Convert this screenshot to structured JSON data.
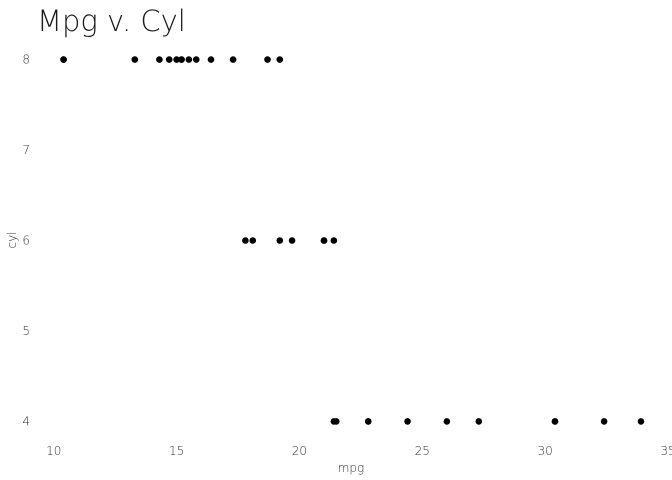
{
  "chart_data": {
    "type": "scatter",
    "title": "Mpg v. Cyl",
    "xlabel": "mpg",
    "ylabel": "cyl",
    "xlim": [
      9.4,
      35.0
    ],
    "ylim": [
      3.85,
      8.15
    ],
    "xticks": [
      10,
      15,
      20,
      25,
      30,
      35
    ],
    "yticks": [
      4,
      5,
      6,
      7,
      8
    ],
    "grid": false,
    "legend": "none",
    "point_color": "#000000",
    "points": [
      {
        "x": 10.4,
        "y": 8
      },
      {
        "x": 10.4,
        "y": 8
      },
      {
        "x": 13.3,
        "y": 8
      },
      {
        "x": 14.3,
        "y": 8
      },
      {
        "x": 14.7,
        "y": 8
      },
      {
        "x": 15.0,
        "y": 8
      },
      {
        "x": 15.2,
        "y": 8
      },
      {
        "x": 15.2,
        "y": 8
      },
      {
        "x": 15.5,
        "y": 8
      },
      {
        "x": 15.8,
        "y": 8
      },
      {
        "x": 16.4,
        "y": 8
      },
      {
        "x": 17.3,
        "y": 8
      },
      {
        "x": 18.7,
        "y": 8
      },
      {
        "x": 19.2,
        "y": 8
      },
      {
        "x": 17.8,
        "y": 6
      },
      {
        "x": 18.1,
        "y": 6
      },
      {
        "x": 19.2,
        "y": 6
      },
      {
        "x": 19.7,
        "y": 6
      },
      {
        "x": 21.0,
        "y": 6
      },
      {
        "x": 21.0,
        "y": 6
      },
      {
        "x": 21.4,
        "y": 6
      },
      {
        "x": 21.4,
        "y": 4
      },
      {
        "x": 21.5,
        "y": 4
      },
      {
        "x": 22.8,
        "y": 4
      },
      {
        "x": 22.8,
        "y": 4
      },
      {
        "x": 24.4,
        "y": 4
      },
      {
        "x": 26.0,
        "y": 4
      },
      {
        "x": 27.3,
        "y": 4
      },
      {
        "x": 30.4,
        "y": 4
      },
      {
        "x": 30.4,
        "y": 4
      },
      {
        "x": 32.4,
        "y": 4
      },
      {
        "x": 33.9,
        "y": 4
      }
    ]
  }
}
